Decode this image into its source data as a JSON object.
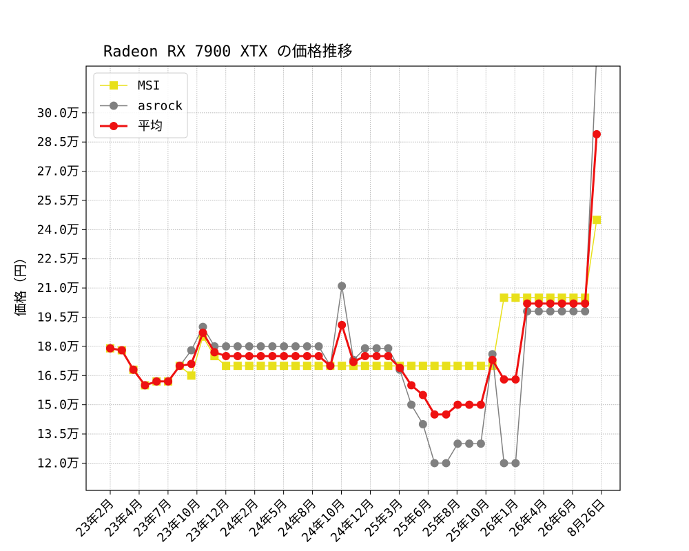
{
  "chart_data": {
    "type": "line",
    "title": "Radeon RX 7900 XTX の価格推移",
    "ylabel": "価格（円）",
    "xlabel": "",
    "ylim": [
      10.6,
      32.4
    ],
    "y_unit": "万",
    "y_ticks": [
      12.0,
      13.5,
      15.0,
      16.5,
      18.0,
      19.5,
      21.0,
      22.5,
      24.0,
      25.5,
      27.0,
      28.5,
      30.0
    ],
    "y_tick_labels": [
      "12.0万",
      "13.5万",
      "15.0万",
      "16.5万",
      "18.0万",
      "19.5万",
      "21.0万",
      "22.5万",
      "24.0万",
      "25.5万",
      "27.0万",
      "28.5万",
      "30.0万"
    ],
    "x_tick_labels": [
      "23年2月",
      "23年4月",
      "23年7月",
      "23年10月",
      "23年12月",
      "24年2月",
      "24年5月",
      "24年8月",
      "24年10月",
      "24年12月",
      "25年3月",
      "25年6月",
      "25年8月",
      "25年10月",
      "26年1月",
      "26年4月",
      "26年6月",
      "8月26日"
    ],
    "grid": true,
    "legend_position": "upper-left",
    "series": [
      {
        "name": "MSI",
        "color": "#e8e01a",
        "marker": "square",
        "values": [
          17.9,
          17.8,
          16.8,
          16.0,
          16.2,
          16.2,
          17.0,
          16.5,
          18.5,
          17.5,
          17.0,
          17.0,
          17.0,
          17.0,
          17.0,
          17.0,
          17.0,
          17.0,
          17.0,
          17.0,
          17.0,
          17.0,
          17.0,
          17.0,
          17.0,
          17.0,
          17.0,
          17.0,
          17.0,
          17.0,
          17.0,
          17.0,
          17.0,
          17.0,
          20.5,
          20.5,
          20.5,
          20.5,
          20.5,
          20.5,
          20.5,
          20.5,
          24.5
        ]
      },
      {
        "name": "asrock",
        "color": "#808080",
        "marker": "circle",
        "values": [
          17.9,
          17.8,
          16.8,
          16.0,
          16.2,
          16.2,
          17.0,
          17.8,
          19.0,
          18.0,
          18.0,
          18.0,
          18.0,
          18.0,
          18.0,
          18.0,
          18.0,
          18.0,
          18.0,
          17.0,
          21.1,
          17.3,
          17.9,
          17.9,
          17.9,
          16.8,
          15.0,
          14.0,
          12.0,
          12.0,
          13.0,
          13.0,
          13.0,
          17.6,
          12.0,
          12.0,
          19.8,
          19.8,
          19.8,
          19.8,
          19.8,
          19.8,
          33.0
        ]
      },
      {
        "name": "平均",
        "color": "#ee1111",
        "marker": "circle",
        "values": [
          17.9,
          17.8,
          16.8,
          16.0,
          16.2,
          16.2,
          17.0,
          17.1,
          18.7,
          17.7,
          17.5,
          17.5,
          17.5,
          17.5,
          17.5,
          17.5,
          17.5,
          17.5,
          17.5,
          17.0,
          19.1,
          17.2,
          17.5,
          17.5,
          17.5,
          16.9,
          16.0,
          15.5,
          14.5,
          14.5,
          15.0,
          15.0,
          15.0,
          17.3,
          16.3,
          16.3,
          20.2,
          20.2,
          20.2,
          20.2,
          20.2,
          20.2,
          28.9
        ]
      }
    ]
  }
}
